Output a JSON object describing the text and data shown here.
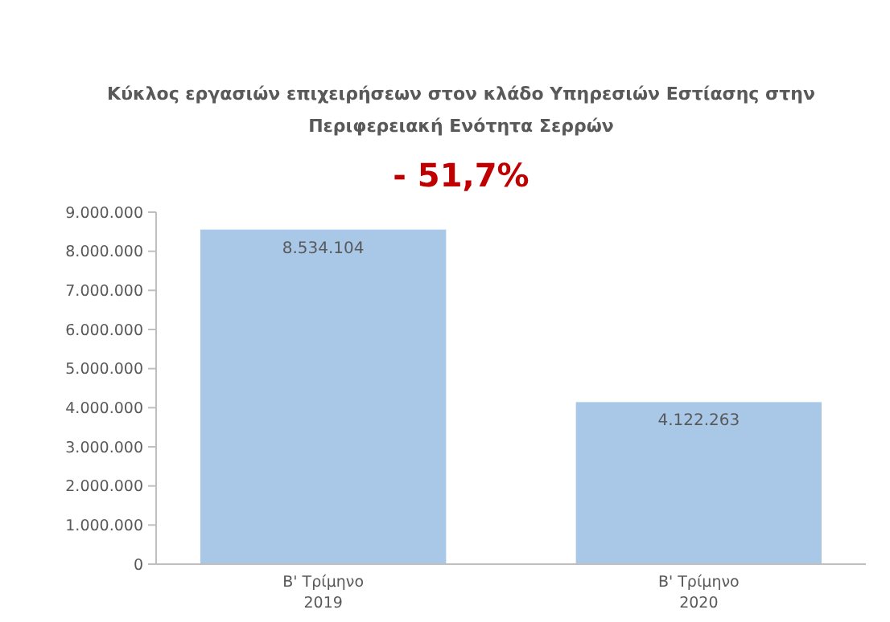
{
  "chart_data": {
    "type": "bar",
    "title": "Κύκλος εργασιών επιχειρήσεων στον κλάδο Υπηρεσιών Εστίασης στην Περιφερειακή Ενότητα Σερρών",
    "subtitle": "- 51,7%",
    "categories": [
      "Β' Τρίμηνο\n2019",
      "Β' Τρίμηνο\n2020"
    ],
    "values": [
      8534104,
      4122263
    ],
    "color": "#a9c8e8",
    "value_labels": [
      "8.534.104",
      "4.122.263"
    ],
    "ylim": [
      0,
      9000000
    ],
    "yticks": [
      {
        "value": 0,
        "label": "0"
      },
      {
        "value": 1000000,
        "label": "1.000.000"
      },
      {
        "value": 2000000,
        "label": "2.000.000"
      },
      {
        "value": 3000000,
        "label": "3.000.000"
      },
      {
        "value": 4000000,
        "label": "4.000.000"
      },
      {
        "value": 5000000,
        "label": "5.000.000"
      },
      {
        "value": 6000000,
        "label": "6.000.000"
      },
      {
        "value": 7000000,
        "label": "7.000.000"
      },
      {
        "value": 8000000,
        "label": "8.000.000"
      },
      {
        "value": 9000000,
        "label": "9.000.000"
      }
    ],
    "grid": false
  }
}
